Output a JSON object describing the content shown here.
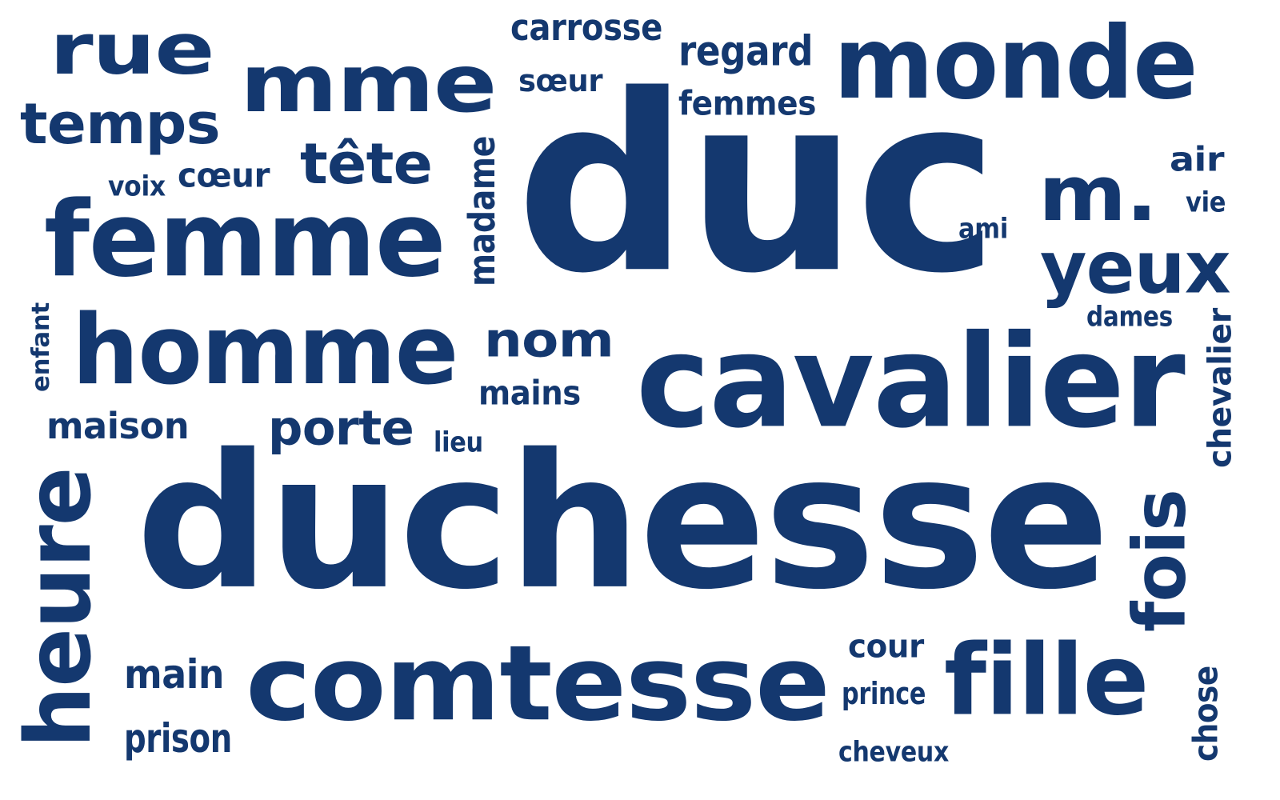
{
  "word_cloud": {
    "color": "#14386f",
    "background": "#ffffff",
    "words": [
      {
        "text": "duc"
      },
      {
        "text": "duchesse"
      },
      {
        "text": "cavalier"
      },
      {
        "text": "comtesse"
      },
      {
        "text": "homme"
      },
      {
        "text": "femme"
      },
      {
        "text": "monde"
      },
      {
        "text": "fille"
      },
      {
        "text": "mme"
      },
      {
        "text": "heure"
      },
      {
        "text": "rue"
      },
      {
        "text": "m."
      },
      {
        "text": "yeux"
      },
      {
        "text": "fois"
      },
      {
        "text": "temps"
      },
      {
        "text": "tête"
      },
      {
        "text": "nom"
      },
      {
        "text": "porte"
      },
      {
        "text": "regard"
      },
      {
        "text": "carrosse"
      },
      {
        "text": "femmes"
      },
      {
        "text": "main"
      },
      {
        "text": "prison"
      },
      {
        "text": "maison"
      },
      {
        "text": "mains"
      },
      {
        "text": "cour"
      },
      {
        "text": "madame"
      },
      {
        "text": "chevalier"
      },
      {
        "text": "sœur"
      },
      {
        "text": "cœur"
      },
      {
        "text": "air"
      },
      {
        "text": "prince"
      },
      {
        "text": "chose"
      },
      {
        "text": "dames"
      },
      {
        "text": "cheveux"
      },
      {
        "text": "enfant"
      },
      {
        "text": "voix"
      },
      {
        "text": "lieu"
      },
      {
        "text": "vie"
      },
      {
        "text": "ami"
      }
    ]
  }
}
